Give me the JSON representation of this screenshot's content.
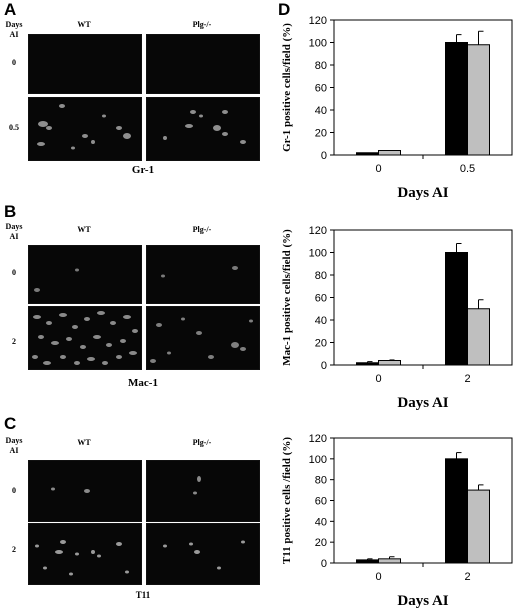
{
  "figure": {
    "stains": [
      {
        "id": "A",
        "stain": "Gr-1",
        "days_header": [
          "Days",
          "AI"
        ],
        "col_labels": [
          "WT",
          "Plg-/-"
        ],
        "row_labels": [
          "0",
          "0.5"
        ]
      },
      {
        "id": "B",
        "stain": "Mac-1",
        "days_header": [
          "Days",
          "AI"
        ],
        "col_labels": [
          "WT",
          "Plg-/-"
        ],
        "row_labels": [
          "0",
          "2"
        ]
      },
      {
        "id": "C",
        "stain": "T11",
        "days_header": [
          "Days",
          "AI"
        ],
        "col_labels": [
          "WT",
          "Plg-/-"
        ],
        "row_labels": [
          "0",
          "2"
        ]
      }
    ],
    "chart_panel_label": "D",
    "colors": {
      "WT": "#000000",
      "Plg-/-": "#bfbfbf",
      "micrograph_bg": "#070707",
      "cell": "#9a9a9a"
    }
  },
  "chart_data": [
    {
      "type": "bar",
      "categories": [
        "0",
        "0.5"
      ],
      "series": [
        {
          "values": [
            2,
            100
          ],
          "errors": [
            0,
            7
          ],
          "color": "#000000"
        },
        {
          "values": [
            4,
            98
          ],
          "errors": [
            0,
            12
          ],
          "color": "#bfbfbf"
        }
      ],
      "xlabel": "Days AI",
      "ylabel": "Gr-1 positive cells/field (%)",
      "ylim": [
        0,
        120
      ],
      "yticks": [
        "0",
        "20",
        "40",
        "60",
        "80",
        "100",
        "120"
      ],
      "grid": false
    },
    {
      "type": "bar",
      "categories": [
        "0",
        "2"
      ],
      "series": [
        {
          "values": [
            2,
            100
          ],
          "errors": [
            1,
            8
          ],
          "color": "#000000"
        },
        {
          "values": [
            4,
            50
          ],
          "errors": [
            0.5,
            8
          ],
          "color": "#bfbfbf"
        }
      ],
      "xlabel": "Days AI",
      "ylabel": "Mac-1 positive cells/field (%)",
      "ylim": [
        0,
        120
      ],
      "yticks": [
        "0",
        "20",
        "40",
        "60",
        "80",
        "100",
        "120"
      ],
      "grid": false
    },
    {
      "type": "bar",
      "categories": [
        "0",
        "2"
      ],
      "series": [
        {
          "values": [
            3,
            100
          ],
          "errors": [
            1,
            6
          ],
          "color": "#000000"
        },
        {
          "values": [
            4,
            70
          ],
          "errors": [
            2,
            5
          ],
          "color": "#bfbfbf"
        }
      ],
      "xlabel": "Days AI",
      "ylabel": "T11 positive cells /field (%)",
      "ylim": [
        0,
        120
      ],
      "yticks": [
        "0",
        "20",
        "40",
        "60",
        "80",
        "100",
        "120"
      ],
      "grid": false
    }
  ]
}
